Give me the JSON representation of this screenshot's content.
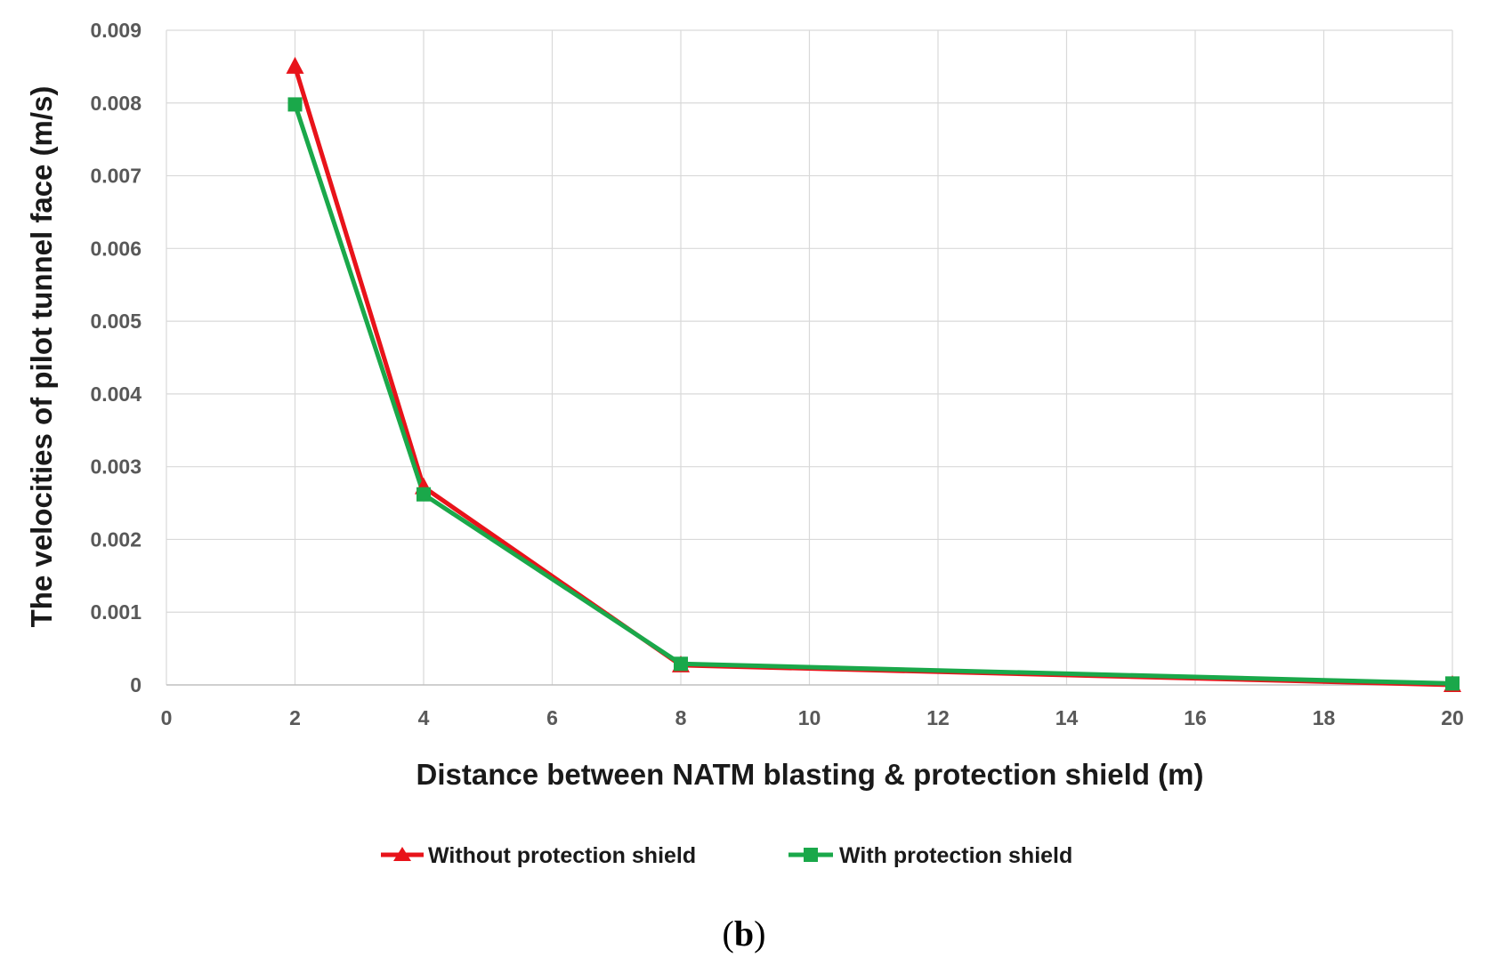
{
  "chart_data": {
    "type": "line",
    "title": "",
    "xlabel": "Distance between NATM blasting & protection shield (m)",
    "ylabel": "The velocities of pilot tunnel face (m/s)",
    "xlim": [
      0,
      20
    ],
    "ylim": [
      0,
      0.009
    ],
    "x_ticks": [
      "0",
      "2",
      "4",
      "6",
      "8",
      "10",
      "12",
      "14",
      "16",
      "18",
      "20"
    ],
    "x_tick_values": [
      0,
      2,
      4,
      6,
      8,
      10,
      12,
      14,
      16,
      18,
      20
    ],
    "y_ticks": [
      "0",
      "0.001",
      "0.002",
      "0.003",
      "0.004",
      "0.005",
      "0.006",
      "0.007",
      "0.008",
      "0.009"
    ],
    "y_tick_values": [
      0,
      0.001,
      0.002,
      0.003,
      0.004,
      0.005,
      0.006,
      0.007,
      0.008,
      0.009
    ],
    "grid": true,
    "legend_position": "bottom",
    "series": [
      {
        "name": "Without protection shield",
        "color": "#e8131a",
        "marker": "triangle",
        "x": [
          2,
          4,
          8,
          20
        ],
        "values": [
          0.0085,
          0.00272,
          0.00027,
          0.0
        ]
      },
      {
        "name": "With protection shield",
        "color": "#1aa84a",
        "marker": "square",
        "x": [
          2,
          4,
          8,
          20
        ],
        "values": [
          0.00798,
          0.00262,
          0.00029,
          2e-05
        ]
      }
    ]
  },
  "caption": {
    "open": "(",
    "letter": "b",
    "close": ")"
  }
}
